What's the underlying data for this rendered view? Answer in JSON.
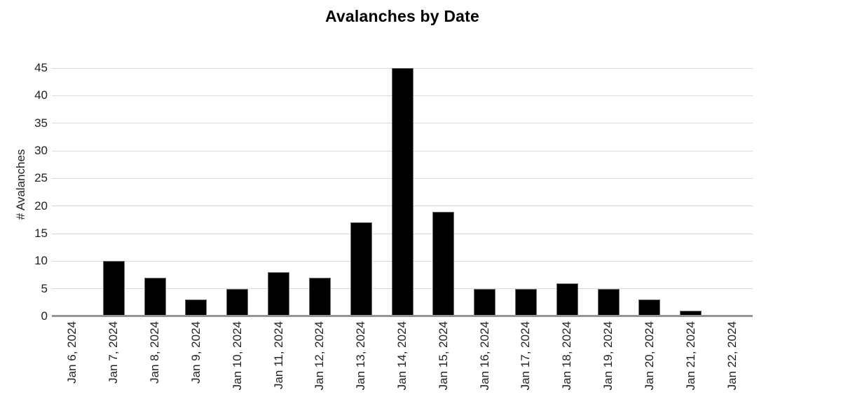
{
  "chart_data": {
    "type": "bar",
    "title": "Avalanches by Date",
    "xlabel": "",
    "ylabel": "# Avalanches",
    "categories": [
      "Jan 6, 2024",
      "Jan 7, 2024",
      "Jan 8, 2024",
      "Jan 9, 2024",
      "Jan 10, 2024",
      "Jan 11, 2024",
      "Jan 12, 2024",
      "Jan 13, 2024",
      "Jan 14, 2024",
      "Jan 15, 2024",
      "Jan 16, 2024",
      "Jan 17, 2024",
      "Jan 18, 2024",
      "Jan 19, 2024",
      "Jan 20, 2024",
      "Jan 21, 2024",
      "Jan 22, 2024"
    ],
    "values": [
      0,
      10,
      7,
      3,
      5,
      8,
      7,
      17,
      45,
      19,
      5,
      5,
      6,
      5,
      3,
      1,
      0
    ],
    "ylim": [
      0,
      45
    ],
    "yticks": [
      0,
      5,
      10,
      15,
      20,
      25,
      30,
      35,
      40,
      45
    ],
    "grid": true,
    "legend": "none",
    "colors": {
      "bar": "#000000",
      "bar_border": "#6f6f6f",
      "gridline": "#d9d9d9",
      "baseline": "#949494",
      "title": "#000000",
      "tick_label": "#222222",
      "background": "#ffffff"
    }
  }
}
